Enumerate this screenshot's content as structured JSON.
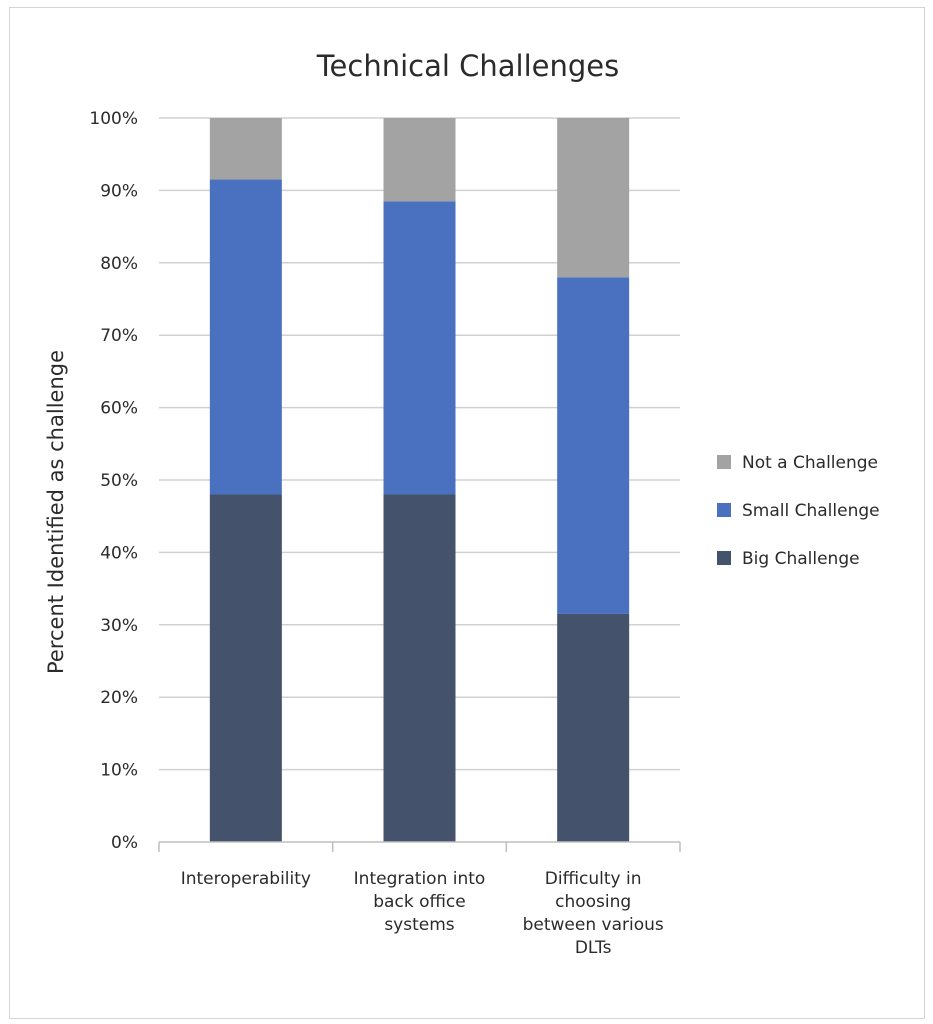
{
  "chart_data": {
    "type": "bar",
    "stacked": true,
    "title": "Technical Challenges",
    "xlabel": "",
    "ylabel": "Percent Identified as challenge",
    "categories": [
      [
        "Interoperability"
      ],
      [
        "Integration into",
        "back office",
        "systems"
      ],
      [
        "Difficulty in",
        "choosing",
        "between various",
        "DLTs"
      ]
    ],
    "series": [
      {
        "name": "Big Challenge",
        "color": "#44536b",
        "values": [
          48,
          48,
          31.5
        ]
      },
      {
        "name": "Small Challenge",
        "color": "#4a70c0",
        "values": [
          43.5,
          40.5,
          46.5
        ]
      },
      {
        "name": "Not a Challenge",
        "color": "#a3a3a3",
        "values": [
          8.5,
          11.5,
          22
        ]
      }
    ],
    "ylim": [
      0,
      100
    ],
    "yticks": [
      "0%",
      "10%",
      "20%",
      "30%",
      "40%",
      "50%",
      "60%",
      "70%",
      "80%",
      "90%",
      "100%"
    ],
    "grid": true,
    "legend_position": "right",
    "legend_order": [
      "Not a Challenge",
      "Small Challenge",
      "Big Challenge"
    ]
  }
}
